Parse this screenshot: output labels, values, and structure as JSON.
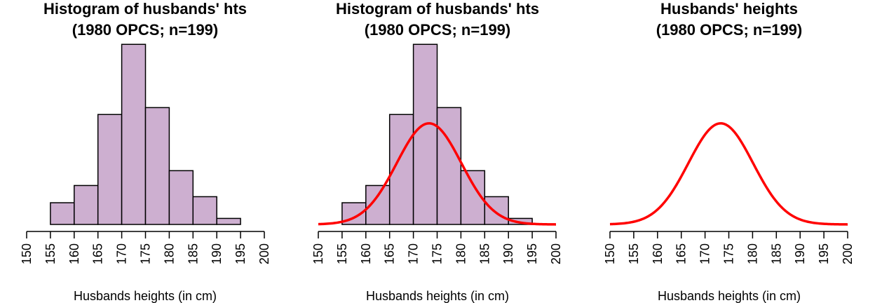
{
  "chart_data": [
    {
      "type": "bar",
      "title": "Histogram of husbands' hts",
      "subtitle": "(1980 OPCS; n=199)",
      "xlabel": "Husbands heights (in cm)",
      "ylabel": "",
      "xlim": [
        150,
        200
      ],
      "x_ticks": [
        "150",
        "155",
        "160",
        "165",
        "170",
        "175",
        "180",
        "185",
        "190",
        "195",
        "200"
      ],
      "bins": [
        [
          155,
          160
        ],
        [
          160,
          165
        ],
        [
          165,
          170
        ],
        [
          170,
          175
        ],
        [
          175,
          180
        ],
        [
          180,
          185
        ],
        [
          185,
          190
        ],
        [
          190,
          195
        ]
      ],
      "values": [
        0.0126,
        0.0226,
        0.0638,
        0.1045,
        0.0678,
        0.0312,
        0.0161,
        0.0035
      ],
      "bar_color": "#cdafd0",
      "curve": false,
      "ylim": [
        0,
        0.105
      ],
      "grid": false
    },
    {
      "type": "bar",
      "title": "Histogram of husbands' hts",
      "subtitle": "(1980 OPCS; n=199)",
      "xlabel": "Husbands heights (in cm)",
      "ylabel": "",
      "xlim": [
        150,
        200
      ],
      "x_ticks": [
        "150",
        "155",
        "160",
        "165",
        "170",
        "175",
        "180",
        "185",
        "190",
        "195",
        "200"
      ],
      "bins": [
        [
          155,
          160
        ],
        [
          160,
          165
        ],
        [
          165,
          170
        ],
        [
          170,
          175
        ],
        [
          175,
          180
        ],
        [
          180,
          185
        ],
        [
          185,
          190
        ],
        [
          190,
          195
        ]
      ],
      "values": [
        0.0126,
        0.0226,
        0.0638,
        0.1045,
        0.0678,
        0.0312,
        0.0161,
        0.0035
      ],
      "bar_color": "#cdafd0",
      "curve": true,
      "curve_mean": 173.3,
      "curve_sd": 6.8,
      "curve_color": "#ff0000",
      "ylim": [
        0,
        0.105
      ],
      "grid": false
    },
    {
      "type": "line",
      "title": "Husbands' heights",
      "subtitle": "(1980 OPCS; n=199)",
      "xlabel": "Husbands heights (in cm)",
      "ylabel": "",
      "xlim": [
        150,
        200
      ],
      "x_ticks": [
        "150",
        "155",
        "160",
        "165",
        "170",
        "175",
        "180",
        "185",
        "190",
        "195",
        "200"
      ],
      "bins": [],
      "values": [],
      "curve": true,
      "curve_mean": 173.3,
      "curve_sd": 6.8,
      "curve_color": "#ff0000",
      "ylim": [
        0,
        0.105
      ],
      "grid": false
    }
  ]
}
